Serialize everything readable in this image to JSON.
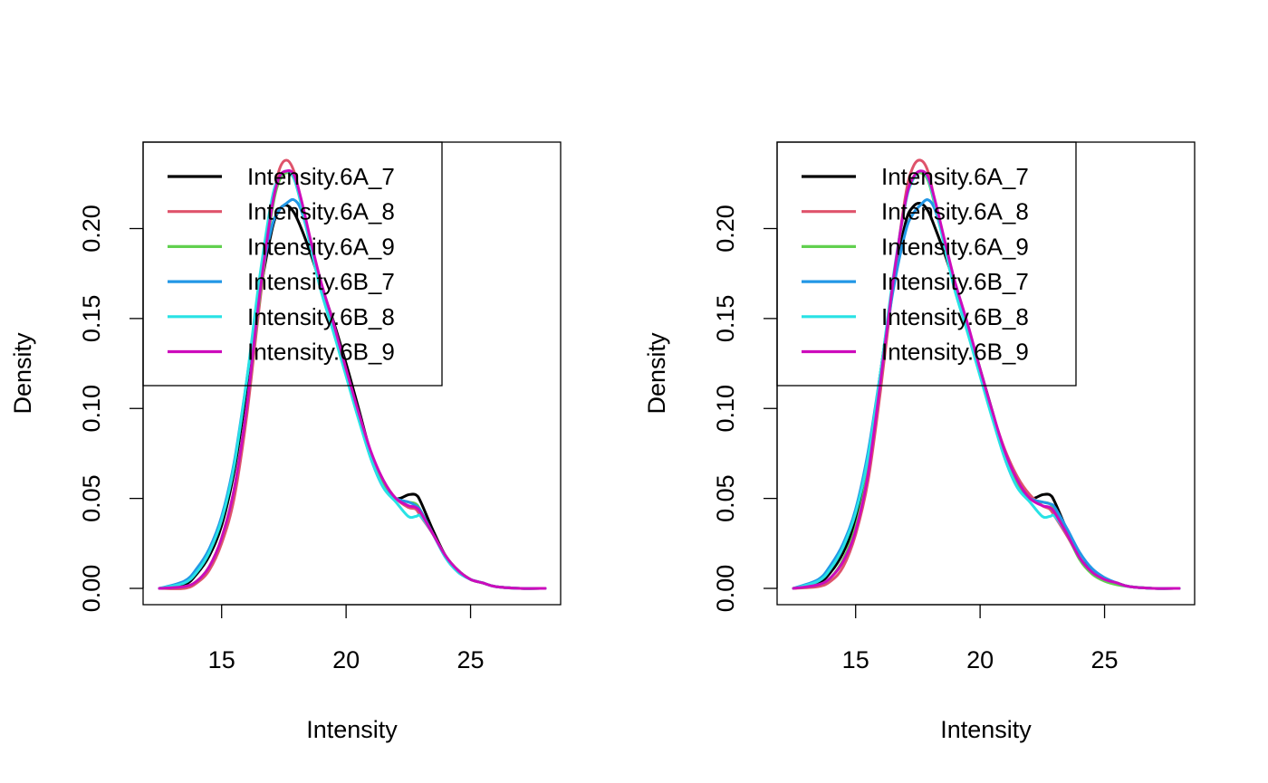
{
  "chart_data": [
    {
      "type": "line",
      "title": "",
      "xlabel": "Intensity",
      "ylabel": "Density",
      "xlim": [
        12.5,
        28
      ],
      "ylim": [
        0,
        0.24
      ],
      "xticks": [
        15,
        20,
        25
      ],
      "xtick_labels": [
        "15",
        "20",
        "25"
      ],
      "yticks": [
        0,
        0.05,
        0.1,
        0.15,
        0.2
      ],
      "ytick_labels": [
        "0.00",
        "0.05",
        "0.10",
        "0.15",
        "0.20"
      ],
      "grid": false,
      "legend_position": "top-left",
      "series": [
        {
          "name": "Intensity.6A_7",
          "color": "#000000",
          "x": [
            12.5,
            13.5,
            14,
            14.5,
            15,
            15.5,
            16,
            16.5,
            17,
            17.3,
            17.6,
            17.9,
            18.2,
            18.6,
            19,
            19.5,
            20,
            20.5,
            21,
            21.5,
            22,
            22.5,
            22.8,
            23,
            23.5,
            24,
            24.5,
            25,
            25.5,
            26,
            27,
            28
          ],
          "y": [
            0,
            0.002,
            0.008,
            0.018,
            0.035,
            0.065,
            0.11,
            0.16,
            0.198,
            0.21,
            0.213,
            0.209,
            0.2,
            0.185,
            0.168,
            0.148,
            0.125,
            0.1,
            0.075,
            0.058,
            0.05,
            0.052,
            0.052,
            0.048,
            0.032,
            0.018,
            0.01,
            0.005,
            0.003,
            0.001,
            0,
            0
          ]
        },
        {
          "name": "Intensity.6A_8",
          "color": "#DF536B",
          "x": [
            12.5,
            13.5,
            14,
            14.5,
            15,
            15.5,
            16,
            16.5,
            17,
            17.3,
            17.6,
            17.9,
            18.2,
            18.6,
            19,
            19.5,
            20,
            20.5,
            21,
            21.5,
            22,
            22.5,
            22.8,
            23,
            23.5,
            24,
            24.5,
            25,
            25.5,
            26,
            27,
            28
          ],
          "y": [
            0,
            0,
            0.003,
            0.01,
            0.025,
            0.05,
            0.095,
            0.155,
            0.21,
            0.232,
            0.238,
            0.232,
            0.215,
            0.19,
            0.168,
            0.145,
            0.12,
            0.096,
            0.075,
            0.06,
            0.05,
            0.045,
            0.044,
            0.04,
            0.03,
            0.018,
            0.01,
            0.005,
            0.003,
            0.001,
            0,
            0
          ]
        },
        {
          "name": "Intensity.6A_9",
          "color": "#61D04F",
          "x": [
            12.5,
            13.5,
            14,
            14.5,
            15,
            15.5,
            16,
            16.5,
            17,
            17.3,
            17.6,
            17.9,
            18.2,
            18.6,
            19,
            19.5,
            20,
            20.5,
            21,
            21.5,
            22,
            22.5,
            22.8,
            23,
            23.5,
            24,
            24.5,
            25,
            25.5,
            26,
            27,
            28
          ],
          "y": [
            0,
            0.001,
            0.004,
            0.012,
            0.028,
            0.055,
            0.1,
            0.158,
            0.208,
            0.226,
            0.231,
            0.228,
            0.214,
            0.19,
            0.167,
            0.144,
            0.12,
            0.096,
            0.074,
            0.058,
            0.05,
            0.048,
            0.047,
            0.043,
            0.03,
            0.018,
            0.01,
            0.005,
            0.003,
            0.001,
            0,
            0
          ]
        },
        {
          "name": "Intensity.6B_7",
          "color": "#2297E6",
          "x": [
            12.5,
            13.5,
            14,
            14.5,
            15,
            15.5,
            16,
            16.5,
            17,
            17.3,
            17.6,
            17.9,
            18.2,
            18.6,
            19,
            19.5,
            20,
            20.5,
            21,
            21.5,
            22,
            22.5,
            22.8,
            23,
            23.5,
            24,
            24.5,
            25,
            25.5,
            26,
            27,
            28
          ],
          "y": [
            0,
            0.004,
            0.011,
            0.022,
            0.04,
            0.07,
            0.115,
            0.165,
            0.2,
            0.21,
            0.214,
            0.216,
            0.21,
            0.19,
            0.168,
            0.145,
            0.12,
            0.095,
            0.072,
            0.056,
            0.05,
            0.048,
            0.046,
            0.043,
            0.03,
            0.017,
            0.009,
            0.005,
            0.003,
            0.001,
            0,
            0
          ]
        },
        {
          "name": "Intensity.6B_8",
          "color": "#28E2E5",
          "x": [
            12.5,
            13.5,
            14,
            14.5,
            15,
            15.5,
            16,
            16.5,
            17,
            17.3,
            17.6,
            17.9,
            18.2,
            18.6,
            19,
            19.5,
            20,
            20.5,
            21,
            21.5,
            22,
            22.5,
            22.8,
            23,
            23.5,
            24,
            24.5,
            25,
            25.5,
            26,
            27,
            28
          ],
          "y": [
            0,
            0.003,
            0.009,
            0.02,
            0.038,
            0.068,
            0.115,
            0.17,
            0.215,
            0.228,
            0.232,
            0.228,
            0.213,
            0.188,
            0.165,
            0.142,
            0.118,
            0.094,
            0.072,
            0.056,
            0.048,
            0.04,
            0.04,
            0.04,
            0.03,
            0.017,
            0.009,
            0.005,
            0.003,
            0.001,
            0,
            0
          ]
        },
        {
          "name": "Intensity.6B_9",
          "color": "#CD0BBC",
          "x": [
            12.5,
            13.5,
            14,
            14.5,
            15,
            15.5,
            16,
            16.5,
            17,
            17.3,
            17.6,
            17.9,
            18.2,
            18.6,
            19,
            19.5,
            20,
            20.5,
            21,
            21.5,
            22,
            22.5,
            22.8,
            23,
            23.5,
            24,
            24.5,
            25,
            25.5,
            26,
            27,
            28
          ],
          "y": [
            0,
            0.001,
            0.004,
            0.012,
            0.028,
            0.055,
            0.1,
            0.16,
            0.21,
            0.228,
            0.232,
            0.23,
            0.216,
            0.192,
            0.17,
            0.147,
            0.122,
            0.098,
            0.076,
            0.06,
            0.05,
            0.046,
            0.045,
            0.042,
            0.03,
            0.018,
            0.01,
            0.005,
            0.003,
            0.001,
            0,
            0
          ]
        }
      ]
    },
    {
      "type": "line",
      "title": "",
      "xlabel": "Intensity",
      "ylabel": "Density",
      "xlim": [
        12.5,
        28
      ],
      "ylim": [
        0,
        0.24
      ],
      "xticks": [
        15,
        20,
        25
      ],
      "xtick_labels": [
        "15",
        "20",
        "25"
      ],
      "yticks": [
        0,
        0.05,
        0.1,
        0.15,
        0.2
      ],
      "ytick_labels": [
        "0.00",
        "0.05",
        "0.10",
        "0.15",
        "0.20"
      ],
      "grid": false,
      "legend_position": "top-left",
      "series": [
        {
          "name": "Intensity.6A_7",
          "color": "#000000",
          "x": [
            12.5,
            13.5,
            14,
            14.5,
            15,
            15.5,
            16,
            16.5,
            17,
            17.3,
            17.6,
            17.9,
            18.2,
            18.6,
            19,
            19.5,
            20,
            20.5,
            21,
            21.5,
            22,
            22.5,
            22.8,
            23,
            23.5,
            24,
            24.5,
            25,
            25.5,
            26,
            27,
            28
          ],
          "y": [
            0,
            0.003,
            0.009,
            0.02,
            0.038,
            0.07,
            0.12,
            0.168,
            0.203,
            0.212,
            0.214,
            0.21,
            0.2,
            0.185,
            0.168,
            0.146,
            0.122,
            0.098,
            0.074,
            0.057,
            0.05,
            0.052,
            0.052,
            0.048,
            0.032,
            0.017,
            0.01,
            0.005,
            0.003,
            0.001,
            0,
            0
          ]
        },
        {
          "name": "Intensity.6A_8",
          "color": "#DF536B",
          "x": [
            12.5,
            13.5,
            14,
            14.5,
            15,
            15.5,
            16,
            16.5,
            17,
            17.3,
            17.6,
            17.9,
            18.2,
            18.6,
            19,
            19.5,
            20,
            20.5,
            21,
            21.5,
            22,
            22.5,
            22.8,
            23,
            23.5,
            24,
            24.5,
            25,
            25.5,
            26,
            27,
            28
          ],
          "y": [
            0,
            0.001,
            0.004,
            0.012,
            0.03,
            0.06,
            0.11,
            0.168,
            0.218,
            0.234,
            0.238,
            0.232,
            0.214,
            0.19,
            0.168,
            0.145,
            0.12,
            0.097,
            0.077,
            0.062,
            0.052,
            0.046,
            0.044,
            0.04,
            0.029,
            0.017,
            0.009,
            0.005,
            0.003,
            0.001,
            0,
            0
          ]
        },
        {
          "name": "Intensity.6A_9",
          "color": "#61D04F",
          "x": [
            12.5,
            13.5,
            14,
            14.5,
            15,
            15.5,
            16,
            16.5,
            17,
            17.3,
            17.6,
            17.9,
            18.2,
            18.6,
            19,
            19.5,
            20,
            20.5,
            21,
            21.5,
            22,
            22.5,
            22.8,
            23,
            23.5,
            24,
            24.5,
            25,
            25.5,
            26,
            27,
            28
          ],
          "y": [
            0,
            0.002,
            0.006,
            0.016,
            0.034,
            0.066,
            0.115,
            0.17,
            0.214,
            0.228,
            0.231,
            0.227,
            0.212,
            0.19,
            0.167,
            0.144,
            0.12,
            0.096,
            0.074,
            0.058,
            0.05,
            0.048,
            0.047,
            0.043,
            0.03,
            0.016,
            0.008,
            0.004,
            0.002,
            0.001,
            0,
            0
          ]
        },
        {
          "name": "Intensity.6B_7",
          "color": "#2297E6",
          "x": [
            12.5,
            13.5,
            14,
            14.5,
            15,
            15.5,
            16,
            16.5,
            17,
            17.3,
            17.6,
            17.9,
            18.2,
            18.6,
            19,
            19.5,
            20,
            20.5,
            21,
            21.5,
            22,
            22.5,
            22.8,
            23,
            23.5,
            24,
            24.5,
            25,
            25.5,
            26,
            27,
            28
          ],
          "y": [
            0,
            0.005,
            0.013,
            0.025,
            0.044,
            0.076,
            0.12,
            0.165,
            0.198,
            0.208,
            0.213,
            0.216,
            0.21,
            0.19,
            0.168,
            0.145,
            0.12,
            0.095,
            0.072,
            0.056,
            0.05,
            0.048,
            0.047,
            0.045,
            0.033,
            0.02,
            0.011,
            0.006,
            0.003,
            0.001,
            0,
            0
          ]
        },
        {
          "name": "Intensity.6B_8",
          "color": "#28E2E5",
          "x": [
            12.5,
            13.5,
            14,
            14.5,
            15,
            15.5,
            16,
            16.5,
            17,
            17.3,
            17.6,
            17.9,
            18.2,
            18.6,
            19,
            19.5,
            20,
            20.5,
            21,
            21.5,
            22,
            22.5,
            22.8,
            23,
            23.5,
            24,
            24.5,
            25,
            25.5,
            26,
            27,
            28
          ],
          "y": [
            0,
            0.004,
            0.011,
            0.023,
            0.042,
            0.073,
            0.12,
            0.172,
            0.214,
            0.227,
            0.232,
            0.228,
            0.213,
            0.188,
            0.165,
            0.142,
            0.118,
            0.094,
            0.072,
            0.056,
            0.048,
            0.04,
            0.04,
            0.04,
            0.03,
            0.017,
            0.009,
            0.005,
            0.003,
            0.001,
            0,
            0
          ]
        },
        {
          "name": "Intensity.6B_9",
          "color": "#CD0BBC",
          "x": [
            12.5,
            13.5,
            14,
            14.5,
            15,
            15.5,
            16,
            16.5,
            17,
            17.3,
            17.6,
            17.9,
            18.2,
            18.6,
            19,
            19.5,
            20,
            20.5,
            21,
            21.5,
            22,
            22.5,
            22.8,
            23,
            23.5,
            24,
            24.5,
            25,
            25.5,
            26,
            27,
            28
          ],
          "y": [
            0,
            0.002,
            0.006,
            0.015,
            0.032,
            0.064,
            0.115,
            0.17,
            0.215,
            0.228,
            0.232,
            0.229,
            0.215,
            0.192,
            0.17,
            0.147,
            0.122,
            0.098,
            0.076,
            0.06,
            0.05,
            0.046,
            0.045,
            0.042,
            0.03,
            0.017,
            0.009,
            0.005,
            0.003,
            0.001,
            0,
            0
          ]
        }
      ]
    }
  ]
}
